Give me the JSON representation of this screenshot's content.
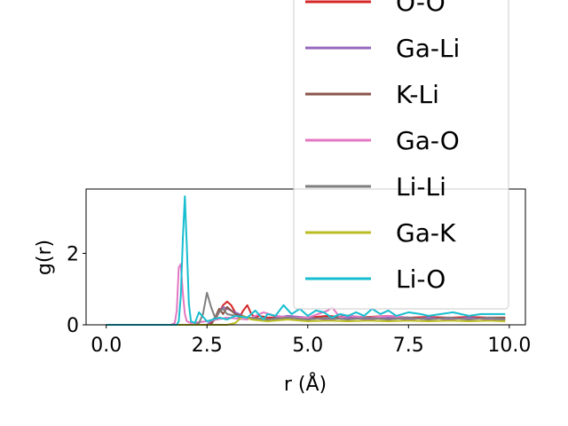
{
  "chart_data": {
    "type": "line",
    "xlabel": "r (Å)",
    "ylabel": "g(r)",
    "xlim": [
      -0.5,
      10.4
    ],
    "ylim": [
      0,
      3.8
    ],
    "xticks": [
      0.0,
      2.5,
      5.0,
      7.5,
      10.0
    ],
    "xtick_labels": [
      "0.0",
      "2.5",
      "5.0",
      "7.5",
      "10.0"
    ],
    "yticks": [
      0,
      2
    ],
    "ytick_labels": [
      "0",
      "2"
    ],
    "legend_position": "upper-right, extending above the axes",
    "series": [
      {
        "name": "O-O",
        "color": "#d62728",
        "x": [
          0,
          1.0,
          2.5,
          2.6,
          2.7,
          2.8,
          2.9,
          3.0,
          3.1,
          3.2,
          3.3,
          3.4,
          3.5,
          3.6,
          3.7,
          3.8,
          4.0,
          4.5,
          5.0,
          5.5,
          6.0,
          6.5,
          7.0,
          7.5,
          8.0,
          8.5,
          9.0,
          9.5,
          9.9
        ],
        "y": [
          0,
          0,
          0,
          0.05,
          0.15,
          0.35,
          0.55,
          0.65,
          0.55,
          0.35,
          0.2,
          0.4,
          0.55,
          0.3,
          0.2,
          0.25,
          0.2,
          0.22,
          0.2,
          0.25,
          0.2,
          0.22,
          0.25,
          0.2,
          0.22,
          0.2,
          0.22,
          0.2,
          0.2
        ]
      },
      {
        "name": "Ga-Li",
        "color": "#9467bd",
        "x": [
          0,
          1.0,
          2.5,
          2.7,
          2.9,
          3.1,
          3.3,
          3.5,
          4.0,
          4.5,
          5.0,
          5.5,
          6.0,
          6.5,
          7.0,
          7.5,
          8.0,
          8.5,
          9.0,
          9.5,
          9.9
        ],
        "y": [
          0,
          0,
          0,
          0.2,
          0.5,
          0.4,
          0.3,
          0.2,
          0.15,
          0.25,
          0.2,
          0.15,
          0.2,
          0.15,
          0.2,
          0.15,
          0.2,
          0.15,
          0.2,
          0.15,
          0.15
        ]
      },
      {
        "name": "K-Li",
        "color": "#8c564b",
        "x": [
          0,
          1.0,
          2.6,
          2.7,
          2.8,
          2.9,
          3.0,
          3.2,
          3.5,
          4.0,
          4.5,
          5.0,
          5.5,
          6.0,
          6.5,
          7.0,
          7.5,
          8.0,
          8.5,
          9.0,
          9.5,
          9.9
        ],
        "y": [
          0,
          0,
          0,
          0.2,
          0.45,
          0.3,
          0.5,
          0.3,
          0.2,
          0.15,
          0.2,
          0.15,
          0.2,
          0.25,
          0.2,
          0.15,
          0.2,
          0.15,
          0.2,
          0.15,
          0.2,
          0.2
        ]
      },
      {
        "name": "Ga-O",
        "color": "#e377c2",
        "x": [
          0,
          1.0,
          1.6,
          1.7,
          1.75,
          1.8,
          1.85,
          1.9,
          1.95,
          2.0,
          2.1,
          2.5,
          3.0,
          3.5,
          3.9,
          4.2,
          4.6,
          5.0,
          5.5,
          5.6,
          5.8,
          6.0,
          6.5,
          7.0,
          7.5,
          8.0,
          8.5,
          9.0,
          9.5,
          9.9
        ],
        "y": [
          0,
          0,
          0,
          0.05,
          0.4,
          1.6,
          1.7,
          0.9,
          0.3,
          0.1,
          0.05,
          0.1,
          0.2,
          0.15,
          0.35,
          0.25,
          0.2,
          0.2,
          0.4,
          0.5,
          0.2,
          0.25,
          0.2,
          0.25,
          0.2,
          0.15,
          0.2,
          0.15,
          0.2,
          0.15
        ]
      },
      {
        "name": "Li-Li",
        "color": "#7f7f7f",
        "x": [
          0,
          1.0,
          2.2,
          2.3,
          2.4,
          2.5,
          2.6,
          2.7,
          2.8,
          2.9,
          3.0,
          3.2,
          3.5,
          4.0,
          4.5,
          5.0,
          5.5,
          6.0,
          6.5,
          7.0,
          7.5,
          8.0,
          8.5,
          9.0,
          9.5,
          9.9
        ],
        "y": [
          0,
          0,
          0,
          0.05,
          0.3,
          0.9,
          0.5,
          0.2,
          0.35,
          0.45,
          0.3,
          0.25,
          0.2,
          0.15,
          0.2,
          0.15,
          0.2,
          0.15,
          0.2,
          0.15,
          0.2,
          0.15,
          0.2,
          0.15,
          0.2,
          0.15
        ]
      },
      {
        "name": "Ga-K",
        "color": "#bcbd22",
        "x": [
          0,
          1.0,
          3.0,
          3.2,
          3.4,
          3.6,
          4.0,
          4.5,
          5.0,
          5.5,
          6.0,
          6.5,
          7.0,
          7.5,
          8.0,
          8.5,
          9.0,
          9.5,
          9.9
        ],
        "y": [
          0,
          0,
          0,
          0.05,
          0.25,
          0.15,
          0.1,
          0.15,
          0.1,
          0.12,
          0.1,
          0.12,
          0.1,
          0.12,
          0.1,
          0.12,
          0.1,
          0.12,
          0.1
        ]
      },
      {
        "name": "Li-O",
        "color": "#17becf",
        "x": [
          0,
          1.0,
          1.75,
          1.8,
          1.85,
          1.9,
          1.95,
          2.0,
          2.05,
          2.1,
          2.2,
          2.3,
          2.5,
          2.8,
          3.0,
          3.2,
          3.5,
          3.7,
          3.9,
          4.0,
          4.2,
          4.4,
          4.6,
          4.8,
          5.0,
          5.2,
          5.4,
          5.6,
          5.8,
          6.0,
          6.2,
          6.4,
          6.6,
          6.8,
          7.0,
          7.2,
          7.5,
          7.8,
          8.0,
          8.3,
          8.6,
          9.0,
          9.3,
          9.6,
          9.9
        ],
        "y": [
          0,
          0,
          0,
          0.1,
          0.8,
          2.4,
          3.6,
          2.2,
          0.6,
          0.1,
          0.05,
          0.35,
          0.1,
          0.2,
          0.15,
          0.25,
          0.2,
          0.4,
          0.15,
          0.3,
          0.25,
          0.55,
          0.3,
          0.45,
          0.25,
          0.4,
          0.35,
          0.2,
          0.3,
          0.25,
          0.35,
          0.25,
          0.45,
          0.3,
          0.4,
          0.25,
          0.35,
          0.3,
          0.25,
          0.3,
          0.35,
          0.25,
          0.3,
          0.3,
          0.3
        ]
      }
    ],
    "hidden_series_colors": [
      "#1f77b4",
      "#ff7f0e",
      "#2ca02c"
    ]
  }
}
